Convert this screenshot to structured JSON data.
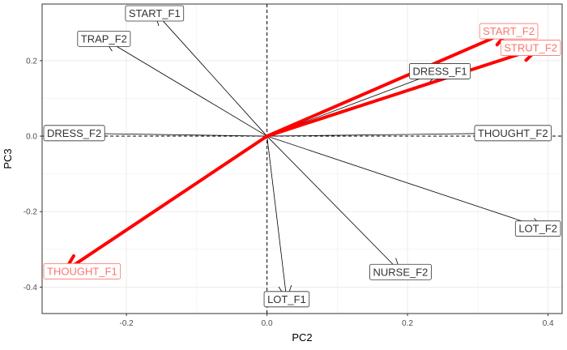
{
  "chart_data": {
    "type": "scatter",
    "title": "",
    "xlabel": "PC2",
    "ylabel": "PC3",
    "xlim": [
      -0.32,
      0.42
    ],
    "ylim": [
      -0.47,
      0.35
    ],
    "x_ticks": [
      -0.2,
      0.0,
      0.2,
      0.4
    ],
    "x_tick_labels": [
      "-0.2",
      "0.0",
      "0.2",
      "0.4"
    ],
    "y_ticks": [
      -0.4,
      -0.2,
      0.0,
      0.2
    ],
    "y_tick_labels": [
      "-0.4",
      "-0.2",
      "0.0",
      "0.2"
    ],
    "grid": true,
    "reference_lines": {
      "x": 0,
      "y": 0,
      "style": "dashed"
    },
    "vectors": [
      {
        "name": "START_F1",
        "x": -0.16,
        "y": 0.33,
        "highlight": false
      },
      {
        "name": "TRAP_F2",
        "x": -0.232,
        "y": 0.258,
        "highlight": false
      },
      {
        "name": "DRESS_F2",
        "x": -0.283,
        "y": 0.008,
        "highlight": false
      },
      {
        "name": "DRESS_F1",
        "x": 0.246,
        "y": 0.172,
        "highlight": false
      },
      {
        "name": "THOUGHT_F2",
        "x": 0.35,
        "y": 0.008,
        "highlight": false
      },
      {
        "name": "LOT_F2",
        "x": 0.395,
        "y": -0.245,
        "highlight": false
      },
      {
        "name": "NURSE_F2",
        "x": 0.19,
        "y": -0.36,
        "highlight": false
      },
      {
        "name": "LOT_F1",
        "x": 0.028,
        "y": -0.432,
        "highlight": false
      },
      {
        "name": "START_F2",
        "x": 0.344,
        "y": 0.278,
        "highlight": true
      },
      {
        "name": "STRUT_F2",
        "x": 0.387,
        "y": 0.234,
        "highlight": true
      },
      {
        "name": "THOUGHT_F1",
        "x": -0.288,
        "y": -0.358,
        "highlight": true
      }
    ],
    "colors": {
      "normal_vector": "#000000",
      "highlight_vector": "#ff0000",
      "normal_label_text": "#333333",
      "highlight_label_text": "#f8766d",
      "grid": "#ebebeb",
      "panel_border": "#333333"
    }
  }
}
